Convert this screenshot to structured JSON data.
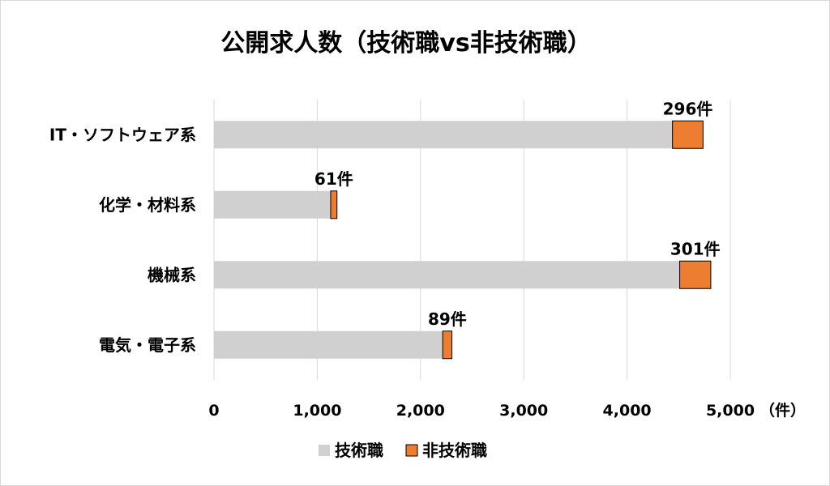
{
  "chart_data": {
    "type": "bar",
    "orientation": "horizontal",
    "stacked": true,
    "title": "公開求人数（技術職vs非技術職）",
    "categories": [
      "IT・ソフトウェア系",
      "化学・材料系",
      "機械系",
      "電気・電子系"
    ],
    "series": [
      {
        "name": "技術職",
        "color": "#d0d0d0",
        "values": [
          4440,
          1130,
          4510,
          2215
        ]
      },
      {
        "name": "非技術職",
        "color": "#ed7d31",
        "values": [
          296,
          61,
          301,
          89
        ]
      }
    ],
    "data_labels": [
      "296件",
      "61件",
      "301件",
      "89件"
    ],
    "xlim": [
      0,
      5000
    ],
    "xticks": [
      0,
      1000,
      2000,
      3000,
      4000,
      5000
    ],
    "xtick_labels": [
      "0",
      "1,000",
      "2,000",
      "3,000",
      "4,000",
      "5,000"
    ],
    "x_unit": "（件）",
    "grid": "vertical",
    "legend_position": "bottom"
  }
}
